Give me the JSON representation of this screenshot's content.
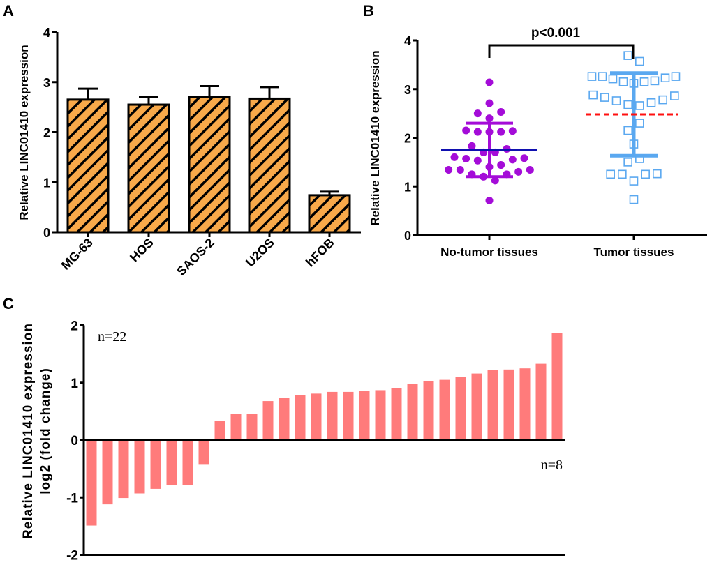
{
  "panels": {
    "a": "A",
    "b": "B",
    "c": "C"
  },
  "chart_data": [
    {
      "type": "bar",
      "panel": "A",
      "ylabel": "Relative LINC01410 expression",
      "xlabel": "",
      "categories": [
        "MG-63",
        "HOS",
        "SAOS-2",
        "U2OS",
        "hFOB"
      ],
      "values": [
        2.65,
        2.55,
        2.7,
        2.67,
        0.74
      ],
      "error_upper": [
        2.87,
        2.71,
        2.92,
        2.9,
        0.81
      ],
      "ylim": [
        0,
        4
      ],
      "yticks": [
        "0",
        "1",
        "2",
        "3",
        "4"
      ],
      "fill": "#F8A94A",
      "hatch": "#000000"
    },
    {
      "type": "scatter",
      "panel": "B",
      "ylabel": "Relative LINC01410 expression",
      "categories": [
        "No-tumor tissues",
        "Tumor tissues"
      ],
      "ylim": [
        0,
        4
      ],
      "yticks": [
        "0",
        "1",
        "2",
        "3",
        "4"
      ],
      "annotation": "p<0.001",
      "series": [
        {
          "name": "No-tumor tissues",
          "marker": "filled-circle",
          "color": "#A40CD8",
          "mean_color": "#1010B0",
          "mean": 1.75,
          "sd_range": [
            1.2,
            2.3
          ],
          "values": [
            3.14,
            2.71,
            2.5,
            2.53,
            2.4,
            2.15,
            2.12,
            2.12,
            2.12,
            2.14,
            1.83,
            1.77,
            1.7,
            1.7,
            1.6,
            1.57,
            1.53,
            1.55,
            1.58,
            1.4,
            1.44,
            1.34,
            1.34,
            1.3,
            1.34,
            1.25,
            1.25,
            1.2,
            1.12,
            0.71
          ]
        },
        {
          "name": "Tumor tissues",
          "marker": "open-square",
          "color": "#5AA8F0",
          "mean_color": "#FF1010",
          "mean": 2.48,
          "sd_range": [
            1.63,
            3.33
          ],
          "values": [
            3.69,
            3.57,
            3.26,
            3.26,
            3.21,
            3.15,
            3.12,
            3.15,
            3.17,
            3.23,
            3.26,
            2.88,
            2.83,
            2.76,
            2.68,
            2.66,
            2.72,
            2.78,
            2.86,
            2.3,
            2.15,
            1.87,
            1.57,
            1.5,
            1.25,
            1.25,
            1.11,
            1.25,
            1.26,
            0.73
          ]
        }
      ]
    },
    {
      "type": "bar",
      "panel": "C",
      "ylabel": [
        "Relative LINC01410 expression",
        "log2 (fold change)"
      ],
      "ylim": [
        -2,
        2
      ],
      "yticks": [
        "-2",
        "-1",
        "0",
        "1",
        "2"
      ],
      "color": "#FF7B7B",
      "annotations": {
        "positive": "n=22",
        "negative": "n=8"
      },
      "values": [
        -1.49,
        -1.12,
        -1.01,
        -0.93,
        -0.85,
        -0.78,
        -0.78,
        -0.43,
        0.34,
        0.45,
        0.46,
        0.68,
        0.74,
        0.78,
        0.81,
        0.84,
        0.84,
        0.86,
        0.87,
        0.91,
        0.98,
        1.03,
        1.05,
        1.1,
        1.16,
        1.22,
        1.23,
        1.25,
        1.33,
        1.87
      ]
    }
  ]
}
